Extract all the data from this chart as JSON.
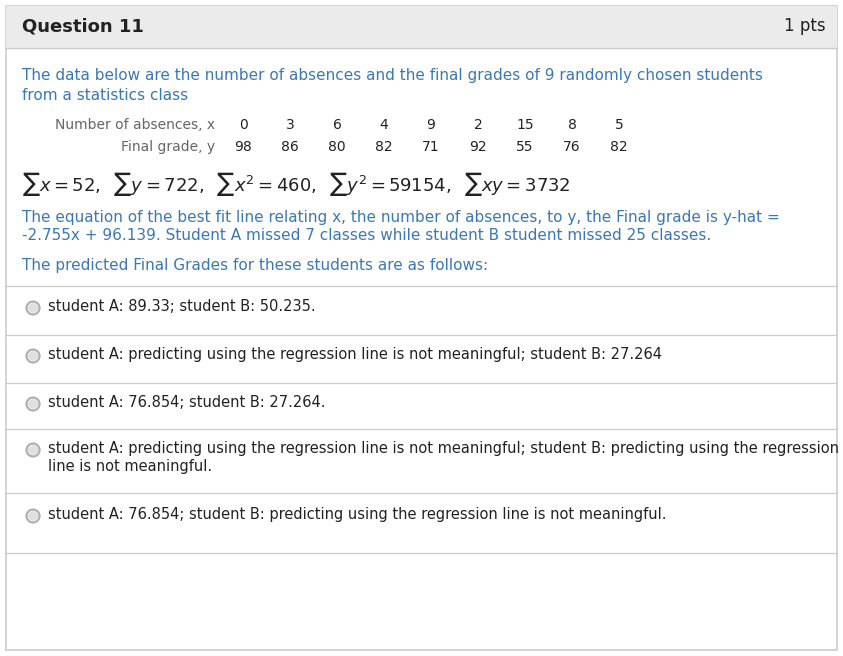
{
  "bg_header": "#ebebeb",
  "bg_body": "#ffffff",
  "border_color": "#cccccc",
  "text_blue": "#3a78b5",
  "text_black": "#222222",
  "text_gray": "#666666",
  "header_text": "Question 11",
  "header_pts": "1 pts",
  "intro_line1": "The data below are the number of absences and the final grades of 9 randomly chosen students",
  "intro_line2": "from a statistics class",
  "row1_label": "Number of absences, x",
  "row1_vals": [
    "0",
    "3",
    "6",
    "4",
    "9",
    "2",
    "15",
    "8",
    "5"
  ],
  "row2_label": "Final grade, y",
  "row2_vals": [
    "98",
    "86",
    "80",
    "82",
    "71",
    "92",
    "55",
    "76",
    "82"
  ],
  "desc_line1": "The equation of the best fit line relating x, the number of absences, to y, the Final grade is y-hat =",
  "desc_line2": "-2.755x + 96.139. Student A missed 7 classes while student B student missed 25 classes.",
  "predicted_line": "The predicted Final Grades for these students are as follows:",
  "opt1_line1": "student A: 89.33; student B: 50.235.",
  "opt1_line2": null,
  "opt2_line1": "student A: predicting using the regression line is not meaningful; student B: 27.264",
  "opt2_line2": null,
  "opt3_line1": "student A: 76.854; student B: 27.264.",
  "opt3_line2": null,
  "opt4_line1": "student A: predicting using the regression line is not meaningful; student B: predicting using the regression",
  "opt4_line2": "line is not meaningful.",
  "opt5_line1": "student A: 76.854; student B: predicting using the regression line is not meaningful.",
  "opt5_line2": null
}
